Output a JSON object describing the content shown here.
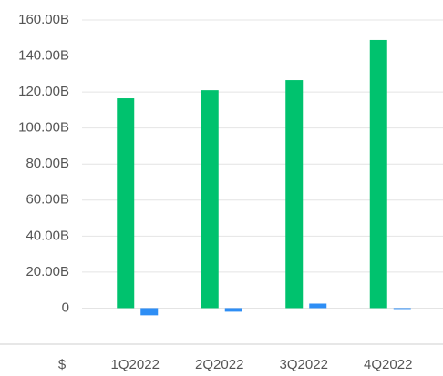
{
  "chart_data": {
    "type": "bar",
    "x_label": "$",
    "categories": [
      "1Q2022",
      "2Q2022",
      "3Q2022",
      "4Q2022"
    ],
    "series": [
      {
        "color": "#00c26e",
        "values": [
          116500000000,
          121000000000,
          126600000000,
          148900000000
        ]
      },
      {
        "color": "#2e8ef5",
        "values": [
          -4000000000,
          -2000000000,
          2500000000,
          -300000000
        ]
      }
    ],
    "ylim": [
      -20000000000,
      160000000000
    ],
    "yticks": [
      0,
      {
        "value": 20000000000,
        "label": "20.00B"
      },
      {
        "value": 40000000000,
        "label": "40.00B"
      },
      {
        "value": 60000000000,
        "label": "60.00B"
      },
      {
        "value": 80000000000,
        "label": "80.00B"
      },
      {
        "value": 100000000000,
        "label": "100.00B"
      },
      {
        "value": 120000000000,
        "label": "120.00B"
      },
      {
        "value": 140000000000,
        "label": "140.00B"
      },
      {
        "value": 160000000000,
        "label": "160.00B"
      }
    ],
    "grid": true
  }
}
